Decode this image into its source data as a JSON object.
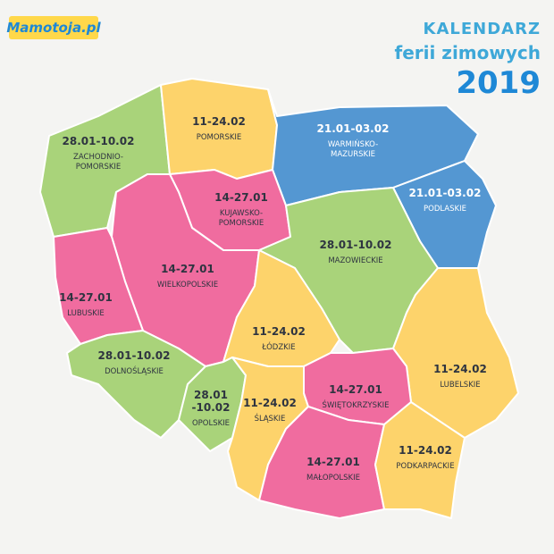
{
  "header": {
    "logo": "Mamotoja.pl",
    "title": [
      "KALENDARZ",
      "ferii zimowych",
      "2019"
    ]
  },
  "regions": [
    {
      "dates": [
        "28.01-10.02"
      ],
      "name": [
        "ZACHODNIO-",
        "POMORSKIE"
      ]
    },
    {
      "dates": [
        "11-24.02"
      ],
      "name": [
        "POMORSKIE"
      ]
    },
    {
      "dates": [
        "21.01-03.02"
      ],
      "name": [
        "WARMIŃSKO-",
        "MAZURSKIE"
      ]
    },
    {
      "dates": [
        "21.01-03.02"
      ],
      "name": [
        "PODLASKIE"
      ]
    },
    {
      "dates": [
        "14-27.01"
      ],
      "name": [
        "KUJAWSKO-",
        "POMORSKIE"
      ]
    },
    {
      "dates": [
        "14-27.01"
      ],
      "name": [
        "WIELKOPOLSKIE"
      ]
    },
    {
      "dates": [
        "14-27.01"
      ],
      "name": [
        "LUBUSKIE"
      ]
    },
    {
      "dates": [
        "28.01-10.02"
      ],
      "name": [
        "MAZOWIECKIE"
      ]
    },
    {
      "dates": [
        "11-24.02"
      ],
      "name": [
        "ŁÓDZKIE"
      ]
    },
    {
      "dates": [
        "11-24.02"
      ],
      "name": [
        "LUBELSKIE"
      ]
    },
    {
      "dates": [
        "28.01-10.02"
      ],
      "name": [
        "DOLNOŚLĄSKIE"
      ]
    },
    {
      "dates": [
        "28.01",
        "-10.02"
      ],
      "name": [
        "OPOLSKIE"
      ]
    },
    {
      "dates": [
        "11-24.02"
      ],
      "name": [
        "ŚLĄSKIE"
      ]
    },
    {
      "dates": [
        "14-27.01"
      ],
      "name": [
        "ŚWIĘTOKRZYSKIE"
      ]
    },
    {
      "dates": [
        "14-27.01"
      ],
      "name": [
        "MAŁOPOLSKIE"
      ]
    },
    {
      "dates": [
        "11-24.02"
      ],
      "name": [
        "PODKARPACKIE"
      ]
    }
  ]
}
